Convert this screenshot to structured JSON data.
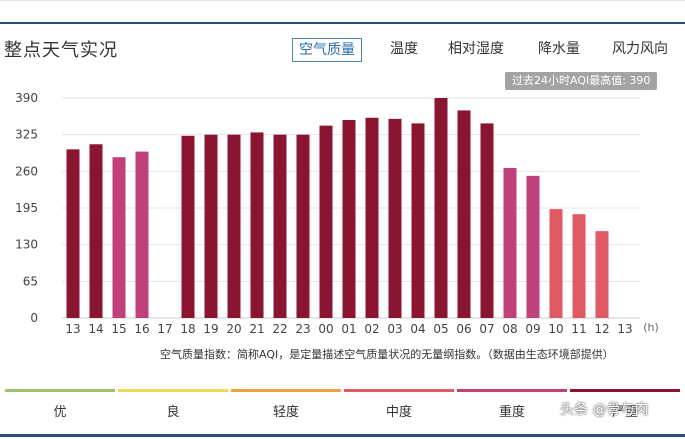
{
  "header": {
    "title": "整点天气实况",
    "tabs": [
      {
        "label": "空气质量",
        "active": true
      },
      {
        "label": "温度",
        "active": false
      },
      {
        "label": "相对湿度",
        "active": false
      },
      {
        "label": "降水量",
        "active": false
      },
      {
        "label": "风力风向",
        "active": false
      }
    ]
  },
  "badge": "过去24小时AQI最高值: 390",
  "chart_data": {
    "type": "bar",
    "categories": [
      "13",
      "14",
      "15",
      "16",
      "17",
      "18",
      "19",
      "20",
      "21",
      "22",
      "23",
      "00",
      "01",
      "02",
      "03",
      "04",
      "05",
      "06",
      "07",
      "08",
      "09",
      "10",
      "11",
      "12",
      "13"
    ],
    "values": [
      299,
      308,
      285,
      295,
      null,
      323,
      325,
      325,
      329,
      325,
      325,
      341,
      351,
      355,
      353,
      345,
      390,
      368,
      345,
      266,
      252,
      193,
      184,
      154,
      null
    ],
    "level_colors": [
      "#8b1530",
      "#8b1530",
      "#c0407a",
      "#c0407a",
      null,
      "#8b1530",
      "#8b1530",
      "#8b1530",
      "#8b1530",
      "#8b1530",
      "#8b1530",
      "#8b1530",
      "#8b1530",
      "#8b1530",
      "#8b1530",
      "#8b1530",
      "#8b1530",
      "#8b1530",
      "#8b1530",
      "#c0407a",
      "#c0407a",
      "#e05a63",
      "#e05a63",
      "#e05a63",
      null
    ],
    "yticks": [
      0,
      65,
      130,
      195,
      260,
      325,
      390
    ],
    "ylim": [
      0,
      390
    ],
    "xlabel_unit": "(h)",
    "grid": true
  },
  "footnote": "空气质量指数：简称AQI，是定量描述空气质量状况的无量纲指数。（数据由生态环境部提供）",
  "legend": [
    {
      "label": "优",
      "color": "#9dc06e"
    },
    {
      "label": "良",
      "color": "#f0d85a"
    },
    {
      "label": "轻度",
      "color": "#f0a040"
    },
    {
      "label": "中度",
      "color": "#e05a63"
    },
    {
      "label": "重度",
      "color": "#c0407a"
    },
    {
      "label": "严重",
      "color": "#8b1530"
    }
  ],
  "watermark": "头条 @骨与肉"
}
